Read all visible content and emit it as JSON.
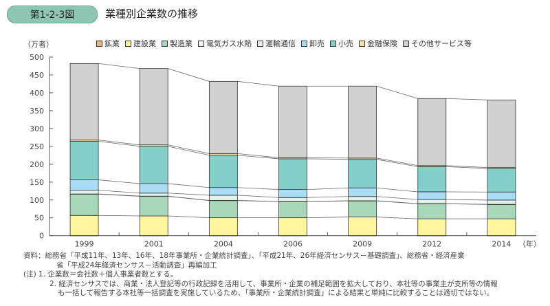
{
  "figure": {
    "badge": "第1-2-3図",
    "title": "業種別企業数の推移"
  },
  "notes": {
    "source_line1": "資料：総務省「平成11年、13年、16年、18年事業所・企業統計調査」、「平成21年、26年経済センサス－基礎調査」、総務省・経済産業",
    "source_line2": "省「平成24年経済センサス－活動調査」再編加工",
    "note1": "(注) 1. 企業数＝会社数＋個人事業者数とする。",
    "note2_line1": "2. 経済センサスでは、商業・法人登記等の行政記録を活用して、事業所・企業の補足範囲を拡大しており、本社等の事業主が支所等の情報",
    "note2_line2": "も一括して報告する本社等一括調査を実施しているため、「事業所・企業統計調査」による結果と単純に比較することは適切ではない。"
  },
  "chart_data": {
    "type": "bar",
    "stacked": true,
    "title": "業種別企業数の推移",
    "ylabel": "（万者）",
    "xlabel": "（年）",
    "ylim": [
      0,
      500
    ],
    "yticks": [
      0,
      50,
      100,
      150,
      200,
      250,
      300,
      350,
      400,
      450,
      500
    ],
    "categories": [
      "1999",
      "2001",
      "2004",
      "2006",
      "2009",
      "2012",
      "2014"
    ],
    "legend_position": "top",
    "connector_lines": true,
    "series": [
      {
        "name": "鉱業",
        "color": "#f0b27a",
        "values": [
          0.2,
          0.2,
          0.2,
          0.2,
          0.2,
          0.2,
          0.2
        ]
      },
      {
        "name": "建設業",
        "color": "#fff59d",
        "values": [
          56.5,
          55,
          50,
          50,
          52,
          47,
          47
        ]
      },
      {
        "name": "製造業",
        "color": "#a8d8b9",
        "values": [
          59.5,
          55,
          48,
          45,
          45,
          42,
          40
        ]
      },
      {
        "name": "電気ガス水熱",
        "color": "#f3f3f3",
        "values": [
          0.5,
          0.5,
          0.5,
          0.5,
          0.5,
          0.5,
          0.5
        ]
      },
      {
        "name": "運輸通信",
        "color": "#e3f1ea",
        "values": [
          10.5,
          8.5,
          14.5,
          11,
          12,
          11.5,
          12
        ]
      },
      {
        "name": "卸売",
        "color": "#a9dcf5",
        "values": [
          29,
          26.5,
          21.5,
          22.5,
          24,
          21.5,
          22.5
        ]
      },
      {
        "name": "小売",
        "color": "#84cfca",
        "values": [
          108,
          104.5,
          90.5,
          86,
          80,
          70.5,
          66
        ]
      },
      {
        "name": "金融保険",
        "color": "#f7e4a6",
        "values": [
          3.5,
          4,
          4.5,
          3,
          3.5,
          3,
          2.5
        ]
      },
      {
        "name": "その他サービス等",
        "color": "#d0d0d0",
        "values": [
          214.3,
          213.8,
          202.3,
          200.5,
          201.5,
          187.8,
          189.3
        ]
      }
    ]
  }
}
